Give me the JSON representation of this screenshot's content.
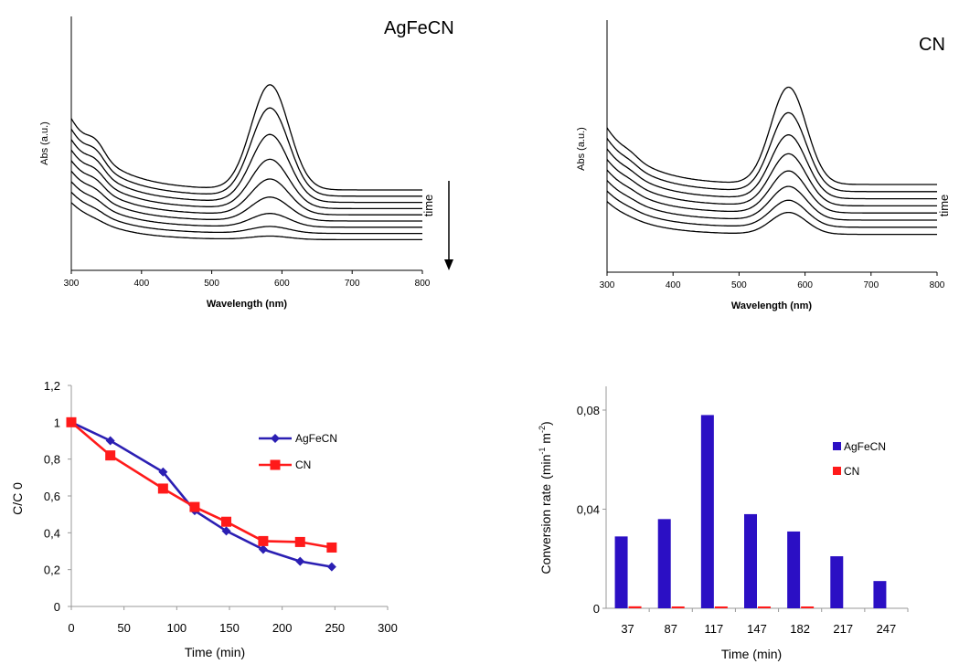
{
  "chart_data": [
    {
      "type": "line",
      "title": "AgFeCN",
      "xlabel": "Wavelength (nm)",
      "ylabel": "Abs (a.u.)",
      "xlim": [
        300,
        800
      ],
      "xticks": [
        "300",
        "400",
        "500",
        "600",
        "700",
        "800"
      ],
      "y_ticks_shown": false,
      "annotation": "time",
      "annotation_arrow": "down",
      "baseline_start": [
        0.82,
        0.72,
        0.64,
        0.58,
        0.52,
        0.47,
        0.43,
        0.39,
        0.35
      ],
      "series": [
        {
          "peak": 0.62
        },
        {
          "peak": 0.52
        },
        {
          "peak": 0.4
        },
        {
          "peak": 0.29
        },
        {
          "peak": 0.21
        },
        {
          "peak": 0.14
        },
        {
          "peak": 0.08
        },
        {
          "peak": 0.04
        },
        {
          "peak": 0.02
        }
      ]
    },
    {
      "type": "line",
      "title": "CN",
      "xlabel": "Wavelength (nm)",
      "ylabel": "Abs (a.u.)",
      "xlim": [
        300,
        800
      ],
      "xticks": [
        "300",
        "400",
        "500",
        "600",
        "700",
        "800"
      ],
      "y_ticks_shown": false,
      "annotation": "time",
      "series": [
        {
          "peak": 0.58
        },
        {
          "peak": 0.47
        },
        {
          "peak": 0.38
        },
        {
          "peak": 0.31
        },
        {
          "peak": 0.25
        },
        {
          "peak": 0.2
        },
        {
          "peak": 0.16
        },
        {
          "peak": 0.13
        }
      ]
    },
    {
      "type": "line",
      "xlabel": "Time (min)",
      "ylabel": "C/C 0",
      "xlim": [
        0,
        300
      ],
      "ylim": [
        0,
        1.2
      ],
      "xticks": [
        "0",
        "50",
        "100",
        "150",
        "200",
        "250",
        "300"
      ],
      "yticks": [
        "0",
        "0,2",
        "0,4",
        "0,6",
        "0,8",
        "1",
        "1,2"
      ],
      "legend_position": "right",
      "series": [
        {
          "name": "AgFeCN",
          "color": "#2b1fb3",
          "marker": "diamond",
          "x": [
            0,
            37,
            87,
            117,
            147,
            182,
            217,
            247
          ],
          "y": [
            1.0,
            0.9,
            0.73,
            0.52,
            0.41,
            0.31,
            0.245,
            0.215
          ]
        },
        {
          "name": "CN",
          "color": "#ff1a1a",
          "marker": "square",
          "x": [
            0,
            37,
            87,
            117,
            147,
            182,
            217,
            247
          ],
          "y": [
            1.0,
            0.82,
            0.64,
            0.54,
            0.46,
            0.355,
            0.35,
            0.32
          ]
        }
      ]
    },
    {
      "type": "bar",
      "xlabel": "Time (min)",
      "ylabel": "Conversion rate",
      "ylabel_unit": "(min",
      "ylabel_sup1": "-1",
      "ylabel_mid": " m",
      "ylabel_sup2": "-2",
      "ylabel_close": ")",
      "ylim": [
        0,
        0.09
      ],
      "yticks": [
        "0",
        "0,04",
        "0,08"
      ],
      "ytick_values": [
        0,
        0.04,
        0.08
      ],
      "categories": [
        "37",
        "87",
        "117",
        "147",
        "182",
        "217",
        "247"
      ],
      "legend_position": "right",
      "series": [
        {
          "name": "AgFeCN",
          "color": "#2b0fc4",
          "values": [
            0.029,
            0.036,
            0.078,
            0.038,
            0.031,
            0.021,
            0.011
          ]
        },
        {
          "name": "CN",
          "color": "#ff1a1a",
          "values": [
            0.0008,
            0.0006,
            0.0006,
            0.0004,
            0.0004,
            0.0,
            0.0
          ]
        }
      ]
    }
  ]
}
